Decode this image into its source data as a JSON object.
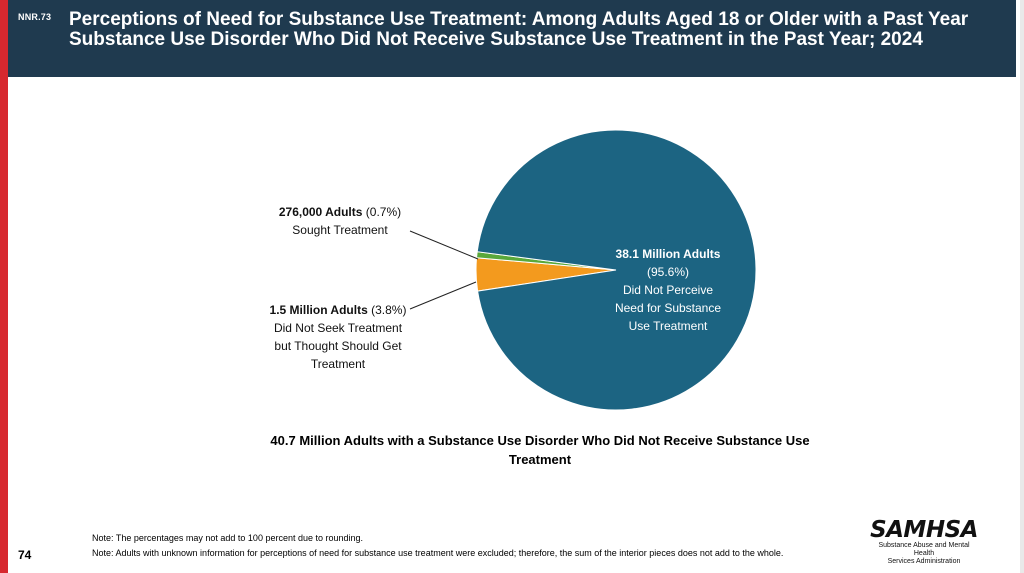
{
  "header": {
    "slide_id": "NNR.73",
    "title": "Perceptions of Need for Substance Use Treatment: Among Adults Aged 18 or Older with a Past Year Substance Use Disorder Who Did Not Receive Substance Use Treatment in the Past Year; 2024"
  },
  "chart_data": {
    "type": "pie",
    "title": "",
    "caption": "40.7 Million Adults with a Substance Use Disorder Who Did Not Receive Substance Use Treatment",
    "slices": [
      {
        "label": "Did Not Perceive Need for Substance Use Treatment",
        "count": "38.1 Million Adults",
        "percent": 95.6,
        "percent_text": "(95.6%)",
        "color": "#1c6482"
      },
      {
        "label": "Did Not Seek Treatment but Thought Should Get Treatment",
        "count": "1.5 Million Adults",
        "percent": 3.8,
        "percent_text": "(3.8%)",
        "color": "#f39a1e"
      },
      {
        "label": "Sought Treatment",
        "count": "276,000 Adults",
        "percent": 0.7,
        "percent_text": "(0.7%)",
        "color": "#5aa83a"
      }
    ]
  },
  "labels": {
    "sought": {
      "count": "276,000 Adults",
      "pct": " (0.7%)",
      "line2": "Sought Treatment"
    },
    "not_seek": {
      "count": "1.5 Million Adults",
      "pct": " (3.8%)",
      "line2": "Did Not Seek Treatment",
      "line3": "but Thought Should Get",
      "line4": "Treatment"
    },
    "not_perceive": {
      "count": "38.1 Million Adults",
      "line2": "(95.6%)",
      "line3": "Did Not Perceive",
      "line4": "Need for Substance",
      "line5": "Use Treatment"
    }
  },
  "notes": [
    "Note: The percentages may not add to 100 percent due to rounding.",
    "Note: Adults with unknown information for perceptions of need for substance use treatment were excluded; therefore, the sum of the interior pieces does not add to the whole."
  ],
  "page_number": "74",
  "logo": {
    "word": "SAMHSA",
    "line1": "Substance Abuse and Mental Health",
    "line2": "Services Administration"
  }
}
